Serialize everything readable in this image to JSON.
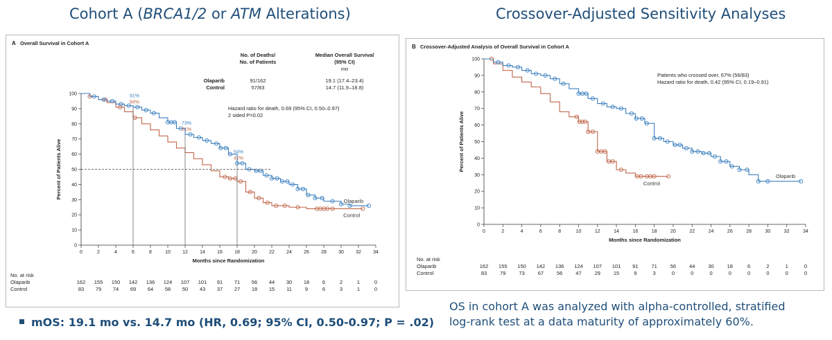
{
  "headings": {
    "left_prefix": "Cohort A (",
    "left_italic1": "BRCA1/2",
    "left_mid": " or ",
    "left_italic2": "ATM",
    "left_suffix": " Alterations)",
    "right": "Crossover-Adjusted Sensitivity Analyses"
  },
  "bottom_text": {
    "bullet": "mOS: 19.1 mo vs. 14.7 mo (HR, 0.69; 95% CI, 0.50-0.97; P = .02)",
    "footnote_line1": "OS in cohort A was analyzed with alpha-controlled, stratified",
    "footnote_line2": "log-rank test at a data maturity of approximately 60%."
  },
  "colors": {
    "olaparib": "#3a7fbf",
    "control": "#c0664a",
    "heading": "#1f4e79"
  },
  "chart_data": [
    {
      "panel_id": "A",
      "type": "line",
      "title": "Overall Survival in Cohort A",
      "xlabel": "Months since Randomization",
      "ylabel": "Percent of Patients Alive",
      "xlim": [
        0,
        34
      ],
      "ylim": [
        0,
        100
      ],
      "x_ticks": [
        0,
        2,
        4,
        6,
        8,
        10,
        12,
        14,
        16,
        18,
        20,
        22,
        24,
        26,
        28,
        30,
        32,
        34
      ],
      "y_ticks": [
        0,
        10,
        20,
        30,
        40,
        50,
        60,
        70,
        80,
        90,
        100
      ],
      "series": [
        {
          "name": "Olaparib",
          "x": [
            0,
            1,
            2,
            3,
            4,
            5,
            6,
            7,
            8,
            9,
            10,
            11,
            12,
            13,
            14,
            15,
            16,
            17,
            18,
            19,
            20,
            21,
            22,
            23,
            24,
            25,
            26,
            27,
            28,
            30,
            31,
            33.2
          ],
          "y": [
            100,
            98,
            96,
            95,
            93,
            92,
            91,
            89,
            87,
            84,
            81,
            77,
            73,
            71,
            69,
            67,
            64,
            60,
            54,
            50,
            49,
            46,
            44,
            42,
            40,
            37,
            33,
            31,
            29,
            27,
            26,
            26
          ]
        },
        {
          "name": "Control",
          "x": [
            0,
            1,
            2,
            3,
            4,
            5,
            6,
            7,
            8,
            9,
            10,
            11,
            12,
            13,
            14,
            15,
            16,
            17,
            18,
            19,
            20,
            21,
            22,
            24,
            26,
            32.5
          ],
          "y": [
            100,
            98,
            96,
            94,
            91,
            88,
            84,
            80,
            76,
            72,
            68,
            64,
            61,
            57,
            53,
            49,
            45,
            44,
            42,
            35,
            31,
            28,
            26,
            25,
            24,
            24
          ]
        }
      ],
      "olaparib_markers": [
        1.5,
        2.6,
        3.6,
        4.6,
        5.5,
        6.5,
        7.5,
        8.4,
        10,
        10.4,
        10.8,
        11.5,
        12.6,
        13.6,
        14.5,
        15.6,
        16.1,
        16.7,
        17.2,
        18,
        18.6,
        19.4,
        20.2,
        20.7,
        21.4,
        22,
        22.6,
        23.2,
        23.8,
        24.4,
        25,
        25.6,
        26.2,
        27,
        27.8,
        29,
        30,
        31,
        33.2
      ],
      "control_markers": [
        1,
        2.8,
        4.5,
        6.2,
        16.6,
        17.2,
        17.8,
        18.4,
        19.5,
        20.5,
        21.5,
        22.5,
        23.5,
        25,
        27.2,
        27.6,
        28,
        28.4,
        29,
        32.5
      ],
      "end_labels": {
        "olaparib": "Olaparib",
        "control": "Control"
      },
      "reference_line": {
        "y": 50,
        "x_end": 22
      },
      "annotations": [
        {
          "x": 6,
          "olaparib": "91%",
          "control": "84%"
        },
        {
          "x": 12,
          "olaparib": "73%",
          "control": "61%"
        },
        {
          "x": 18,
          "olaparib": "54%",
          "control": "42%"
        }
      ],
      "table": {
        "header_deaths": "No. of Deaths/",
        "header_patients": "No. of Patients",
        "header_median": "Median Overall Survival",
        "header_ci": "(95% CI)",
        "header_unit": "mo",
        "rows": [
          {
            "arm": "Olaparib",
            "deaths": "91/162",
            "median": "19.1 (17.4–23.4)"
          },
          {
            "arm": "Control",
            "deaths": "57/83",
            "median": "14.7 (11.9–18.8)"
          }
        ]
      },
      "hazard_text": [
        "Hazard ratio for death, 0.69 (95% CI, 0.50–0.97)",
        "2 sided P=0.02"
      ],
      "at_risk": {
        "title": "No. at risk",
        "rows": [
          {
            "arm": "Olaparib",
            "values": [
              "162",
              "155",
              "150",
              "142",
              "136",
              "124",
              "107",
              "101",
              "91",
              "71",
              "56",
              "44",
              "30",
              "18",
              "6",
              "2",
              "1",
              "0"
            ]
          },
          {
            "arm": "Control",
            "values": [
              "83",
              "79",
              "74",
              "69",
              "64",
              "58",
              "50",
              "43",
              "37",
              "27",
              "18",
              "15",
              "11",
              "9",
              "6",
              "3",
              "1",
              "0"
            ]
          }
        ]
      }
    },
    {
      "panel_id": "B",
      "type": "line",
      "title": "Crossover-Adjusted Analysis of Overall Survival in Cohort A",
      "xlabel": "Months since Randomization",
      "ylabel": "Percent of Patients Alive",
      "xlim": [
        0,
        34
      ],
      "ylim": [
        0,
        100
      ],
      "x_ticks": [
        0,
        2,
        4,
        6,
        8,
        10,
        12,
        14,
        16,
        18,
        20,
        22,
        24,
        26,
        28,
        30,
        32,
        34
      ],
      "y_ticks": [
        0,
        10,
        20,
        30,
        40,
        50,
        60,
        70,
        80,
        90,
        100
      ],
      "series": [
        {
          "name": "Olaparib",
          "x": [
            0,
            1,
            2,
            3,
            4,
            5,
            6,
            7,
            8,
            9,
            10,
            11,
            12,
            13,
            14,
            15,
            16,
            17,
            18,
            19,
            20,
            21,
            22,
            23,
            24,
            25,
            26,
            27,
            28,
            29,
            30,
            33.5
          ],
          "y": [
            100,
            98,
            96,
            95,
            93,
            91,
            90,
            88,
            85,
            82,
            79,
            76,
            73,
            71,
            70,
            67,
            64,
            61,
            52,
            50,
            48,
            46,
            44,
            43,
            41,
            38,
            35,
            33,
            30,
            26,
            26,
            26
          ]
        },
        {
          "name": "Control",
          "x": [
            0,
            1,
            2,
            3,
            4,
            5,
            6,
            7,
            8,
            9,
            10,
            11,
            12,
            13,
            14,
            15,
            16,
            17,
            18,
            19.5
          ],
          "y": [
            100,
            97,
            93,
            89,
            86,
            83,
            79,
            74,
            68,
            65,
            62,
            56,
            44,
            38,
            33,
            31,
            29,
            29,
            29,
            29
          ]
        }
      ],
      "olaparib_markers": [
        1.5,
        2.6,
        3.6,
        4.6,
        5.5,
        6.5,
        7.5,
        8.4,
        10,
        10.4,
        10.8,
        11.5,
        12.6,
        13.6,
        14.5,
        15.6,
        16.1,
        16.7,
        17.2,
        18,
        18.6,
        19.4,
        20.2,
        20.7,
        21.4,
        22,
        22.6,
        23.2,
        23.8,
        24.4,
        25,
        25.6,
        26.2,
        27,
        27.8,
        29,
        30,
        33.5
      ],
      "control_markers": [
        0.8,
        9.8,
        10.1,
        10.4,
        10.7,
        11,
        11.5,
        12,
        12.4,
        12.8,
        13.2,
        13.6,
        14.5,
        16.2,
        16.6,
        17.2,
        17.6,
        18,
        19.5
      ],
      "end_labels": {
        "olaparib": "Olaparib",
        "control": "Control"
      },
      "crossover_text": [
        "Patients who crossed over, 67% (56/83)",
        "Hazard ratio for death, 0.42 (95% CI, 0.19–0.91)"
      ],
      "at_risk": {
        "title": "No. at risk",
        "rows": [
          {
            "arm": "Olaparib",
            "values": [
              "162",
              "155",
              "150",
              "142",
              "136",
              "124",
              "107",
              "101",
              "91",
              "71",
              "56",
              "44",
              "30",
              "18",
              "6",
              "2",
              "1",
              "0"
            ]
          },
          {
            "arm": "Control",
            "values": [
              "83",
              "79",
              "73",
              "67",
              "56",
              "47",
              "29",
              "15",
              "9",
              "3",
              "0",
              "0",
              "0",
              "0",
              "0",
              "0",
              "0",
              "0"
            ]
          }
        ]
      }
    }
  ]
}
